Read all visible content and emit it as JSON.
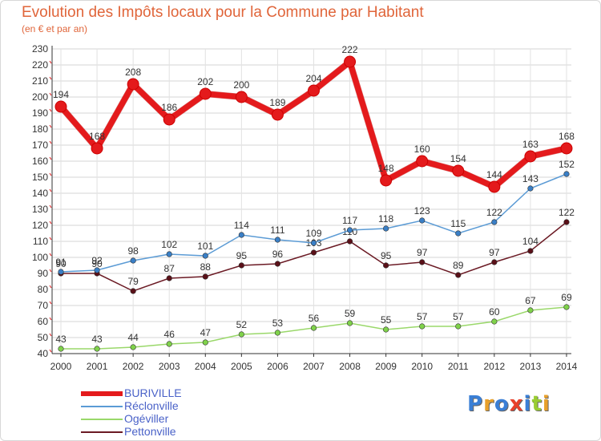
{
  "title": "Evolution des Impôts locaux pour la Commune par Habitant",
  "subtitle": "(en € et par an)",
  "logo": {
    "text": "Proxiti",
    "colors": [
      "#3a7fd6",
      "#e8a02a",
      "#3a7fd6",
      "#e8402a",
      "#3a7fd6",
      "#9acd32",
      "#e8a02a"
    ]
  },
  "chart_data": {
    "type": "line",
    "title": "Evolution des Impôts locaux pour la Commune par Habitant",
    "ylabel": "(en € et par an)",
    "xlabel": "",
    "ylim": [
      40,
      230
    ],
    "yticks": [
      40,
      50,
      60,
      70,
      80,
      90,
      100,
      110,
      120,
      130,
      140,
      150,
      160,
      170,
      180,
      190,
      200,
      210,
      220,
      230
    ],
    "ytick_labels": [
      "40",
      "50",
      "60",
      "70",
      "80",
      "90",
      "100",
      "110",
      "120",
      "130",
      "140",
      "150",
      "160",
      "170",
      "180",
      "190",
      "200",
      "210",
      "220",
      "230"
    ],
    "categories": [
      "2000",
      "2001",
      "2002",
      "2003",
      "2004",
      "2005",
      "2006",
      "2007",
      "2008",
      "2009",
      "2010",
      "2011",
      "2012",
      "2013",
      "2014"
    ],
    "series": [
      {
        "name": "BURIVILLE",
        "color": "#e41a1c",
        "marker_color": "#e41a1c",
        "bold": true,
        "values": [
          194,
          168,
          208,
          186,
          202,
          200,
          189,
          204,
          222,
          148,
          160,
          154,
          144,
          163,
          168
        ],
        "labels": [
          "194",
          "168",
          "208",
          "186",
          "202",
          "200",
          "189",
          "204",
          "222",
          "148",
          "160",
          "154",
          "144",
          "163",
          "168"
        ]
      },
      {
        "name": "Réclonville",
        "color": "#5b9bd5",
        "marker_color": "#3a7fc6",
        "values": [
          91,
          92,
          98,
          102,
          101,
          114,
          111,
          109,
          117,
          118,
          123,
          115,
          122,
          143,
          152
        ],
        "labels": [
          "91",
          "92",
          "98",
          "102",
          "101",
          "114",
          "111",
          "109",
          "117",
          "118",
          "123",
          "115",
          "122",
          "143",
          "152"
        ]
      },
      {
        "name": "Ogéviller",
        "color": "#9ad86a",
        "marker_color": "#7fd24a",
        "values": [
          43,
          43,
          44,
          46,
          47,
          52,
          53,
          56,
          59,
          55,
          57,
          57,
          60,
          67,
          69
        ],
        "labels": [
          "43",
          "43",
          "44",
          "46",
          "47",
          "52",
          "53",
          "56",
          "59",
          "55",
          "57",
          "57",
          "60",
          "67",
          "69"
        ]
      },
      {
        "name": "Pettonville",
        "color": "#6b1a24",
        "marker_color": "#5a1018",
        "values": [
          90,
          90,
          79,
          87,
          88,
          95,
          96,
          103,
          110,
          95,
          97,
          89,
          97,
          104,
          122
        ],
        "labels": [
          "90",
          "90",
          "79",
          "87",
          "88",
          "95",
          "96",
          "103",
          "110",
          "95",
          "97",
          "89",
          "97",
          "104",
          "122"
        ]
      }
    ],
    "legend": "bottom-left"
  }
}
